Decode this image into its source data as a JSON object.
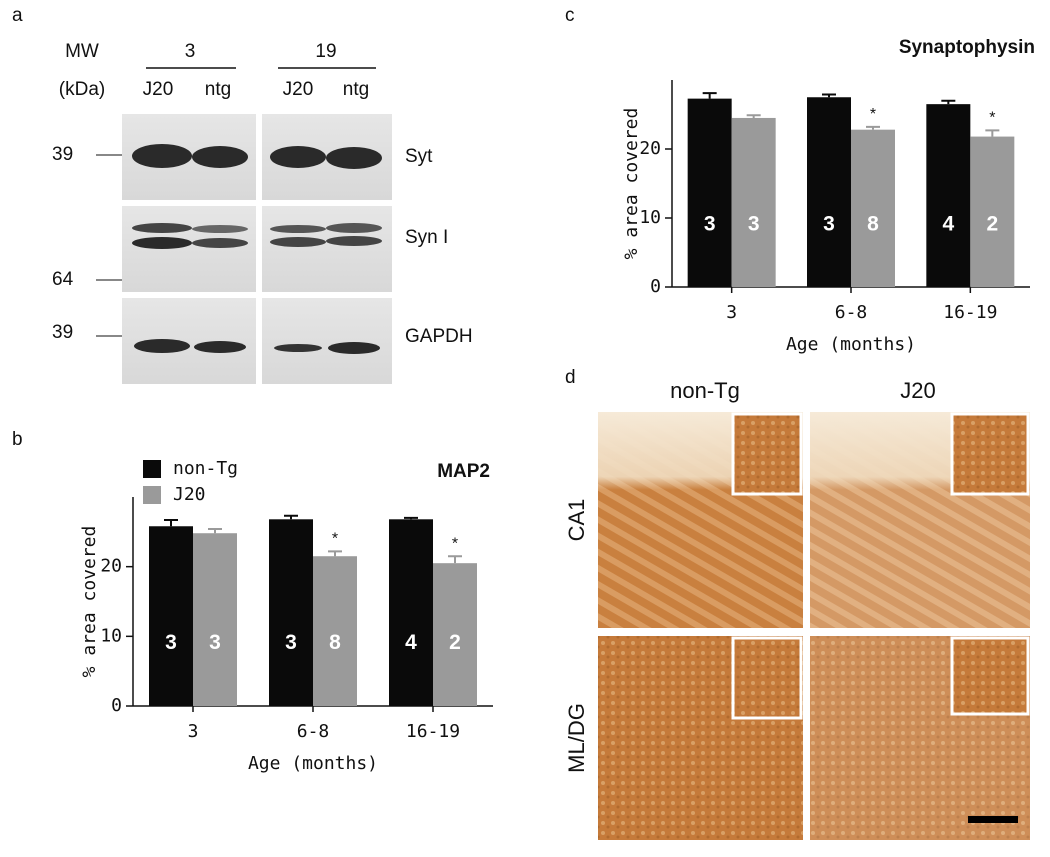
{
  "panel_labels": [
    "a",
    "b",
    "c",
    "d"
  ],
  "blot": {
    "mw_header": "MW",
    "mw_unit": "(kDa)",
    "groups": [
      {
        "label": "3",
        "lanes": [
          "J20",
          "ntg"
        ]
      },
      {
        "label": "19",
        "lanes": [
          "J20",
          "ntg"
        ]
      }
    ],
    "markers": [
      "39",
      "64",
      "39"
    ],
    "rows": [
      "Syt",
      "Syn I",
      "GAPDH"
    ]
  },
  "micrographs": {
    "columns": [
      "non-Tg",
      "J20"
    ],
    "rows": [
      "CA1",
      "ML/DG"
    ]
  },
  "chart_data": [
    {
      "type": "bar",
      "title": "MAP2",
      "ylabel": "% area covered",
      "xlabel": "Age (months)",
      "categories": [
        "3",
        "6-8",
        "16-19"
      ],
      "legend": "top-left",
      "ylim": [
        0,
        30
      ],
      "yticks": [
        0,
        10,
        20
      ],
      "series": [
        {
          "name": "non-Tg",
          "color": "#0a0a0a",
          "values": [
            25.8,
            26.8,
            26.8
          ],
          "errors": [
            0.9,
            0.5,
            0.2
          ],
          "n": [
            3,
            3,
            4
          ]
        },
        {
          "name": "J20",
          "color": "#9a9a9a",
          "values": [
            24.8,
            21.5,
            20.5
          ],
          "errors": [
            0.6,
            0.7,
            1.0
          ],
          "n": [
            3,
            8,
            2
          ],
          "annotations": [
            null,
            "*",
            "*"
          ]
        }
      ]
    },
    {
      "type": "bar",
      "title": "Synaptophysin",
      "ylabel": "% area covered",
      "xlabel": "Age (months)",
      "categories": [
        "3",
        "6-8",
        "16-19"
      ],
      "ylim": [
        0,
        30
      ],
      "yticks": [
        0,
        10,
        20
      ],
      "series": [
        {
          "color": "#0a0a0a",
          "values": [
            27.3,
            27.5,
            26.5
          ],
          "errors": [
            0.8,
            0.4,
            0.5
          ],
          "n": [
            3,
            3,
            4
          ]
        },
        {
          "color": "#9a9a9a",
          "values": [
            24.5,
            22.8,
            21.8
          ],
          "errors": [
            0.4,
            0.4,
            0.9
          ],
          "n": [
            3,
            8,
            2
          ],
          "annotations": [
            null,
            "*",
            "*"
          ]
        }
      ]
    }
  ]
}
